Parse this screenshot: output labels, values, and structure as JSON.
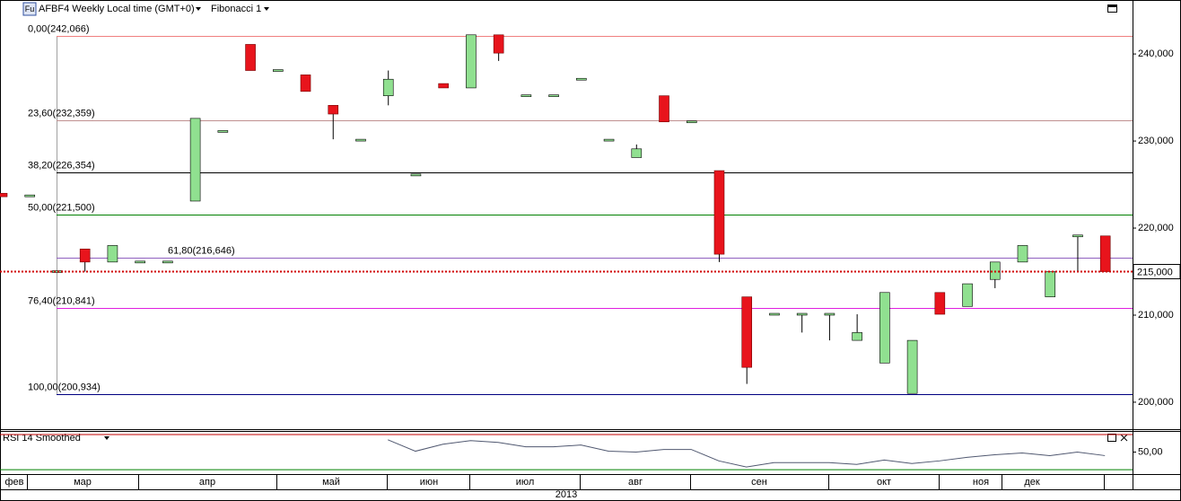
{
  "chart_data": {
    "type": "candlestick",
    "title": "AFBF4 Weekly Local time (GMT+0)",
    "icon_label": "Fu",
    "tool_label": "Fibonacci 1",
    "categories": [
      null,
      null,
      null,
      null,
      null,
      null,
      null,
      null,
      null,
      null,
      null,
      null,
      null,
      null,
      null,
      null,
      null,
      null,
      null,
      null,
      null,
      null,
      null,
      null,
      null,
      null,
      null,
      null,
      null,
      null,
      null,
      null,
      null,
      null,
      null,
      null,
      null,
      null,
      null,
      null,
      null
    ],
    "open": [
      224000,
      223700,
      214900,
      217600,
      216100,
      216100,
      216100,
      223100,
      231100,
      241100,
      238100,
      237600,
      234100,
      230100,
      235200,
      226100,
      236600,
      236100,
      242200,
      235200,
      235200,
      237100,
      230100,
      228100,
      235200,
      232200,
      226600,
      212100,
      210100,
      210100,
      210100,
      207100,
      204500,
      201000,
      212600,
      211000,
      214100,
      216100,
      212100,
      219100,
      219100
    ],
    "high": [
      224000,
      223700,
      215100,
      217600,
      218000,
      216100,
      216100,
      232600,
      231100,
      241100,
      238100,
      237600,
      234100,
      230100,
      238100,
      226100,
      236600,
      242200,
      242200,
      235200,
      235200,
      237100,
      230100,
      229600,
      235200,
      232200,
      226600,
      212100,
      210100,
      210100,
      210100,
      210100,
      212600,
      207100,
      212600,
      213600,
      216100,
      218000,
      215000,
      219100,
      219100
    ],
    "low": [
      223600,
      223700,
      214900,
      215000,
      216100,
      216100,
      216100,
      223100,
      231100,
      238100,
      238100,
      235700,
      230200,
      230100,
      234100,
      226100,
      236100,
      236100,
      239200,
      235200,
      235200,
      237100,
      230100,
      228100,
      232200,
      232200,
      216100,
      202100,
      210100,
      208000,
      207100,
      207100,
      204500,
      201000,
      210100,
      211000,
      213100,
      216100,
      212100,
      215000,
      215000
    ],
    "close": [
      223600,
      223700,
      215100,
      216100,
      218000,
      216100,
      216100,
      232600,
      231100,
      238100,
      238100,
      235700,
      233100,
      230100,
      237100,
      226100,
      236100,
      242200,
      240100,
      235200,
      235200,
      237100,
      230100,
      229100,
      232200,
      232200,
      217000,
      204000,
      210100,
      210100,
      210100,
      208000,
      212600,
      207100,
      210100,
      213600,
      216100,
      218000,
      215000,
      219100,
      215000
    ],
    "up_color": "#90e090",
    "down_color": "#e8141c",
    "ylim": [
      196900,
      246200
    ],
    "yticks": [
      {
        "value": 200000,
        "label": "200,000"
      },
      {
        "value": 210000,
        "label": "210,000"
      },
      {
        "value": 220000,
        "label": "220,000"
      },
      {
        "value": 230000,
        "label": "230,000"
      },
      {
        "value": 240000,
        "label": "240,000"
      }
    ],
    "last_price": {
      "value": 215000,
      "label": "215,000"
    },
    "last_price_color": "#d00000",
    "fibonacci": [
      {
        "label": "0,00(242,066)",
        "value": 242066,
        "color": "#f08080"
      },
      {
        "label": "23,60(232,359)",
        "value": 232359,
        "color": "#c09090"
      },
      {
        "label": "38,20(226,354)",
        "value": 226354,
        "color": "#000000"
      },
      {
        "label": "50,00(221,500)",
        "value": 221500,
        "color": "#008000"
      },
      {
        "label": "61,80(216,646)",
        "value": 216646,
        "color": "#9060c0"
      },
      {
        "label": "76,40(210,841)",
        "value": 210841,
        "color": "#e020e0"
      },
      {
        "label": "100,00(200,934)",
        "value": 200934,
        "color": "#000080"
      }
    ],
    "rsi": {
      "label": "RSI 14 Smoothed",
      "values": [
        null,
        null,
        null,
        null,
        null,
        null,
        null,
        null,
        null,
        null,
        null,
        null,
        null,
        null,
        64,
        51,
        59,
        63,
        61,
        56,
        56,
        58,
        51,
        50,
        53,
        53,
        40,
        33,
        38,
        38,
        38,
        36,
        41,
        37,
        40,
        44,
        47,
        49,
        46,
        50,
        46
      ],
      "color": "#505870",
      "ylim": [
        25,
        73
      ],
      "yticks": [
        {
          "value": 50,
          "label": "50,00"
        }
      ],
      "levels": [
        {
          "value": 70,
          "color": "#c00000"
        },
        {
          "value": 30,
          "color": "#008000"
        }
      ]
    },
    "months": [
      "фев",
      "мар",
      "апр",
      "май",
      "июн",
      "июл",
      "авг",
      "сен",
      "окт",
      "ноя",
      "дек"
    ],
    "year": "2013"
  }
}
